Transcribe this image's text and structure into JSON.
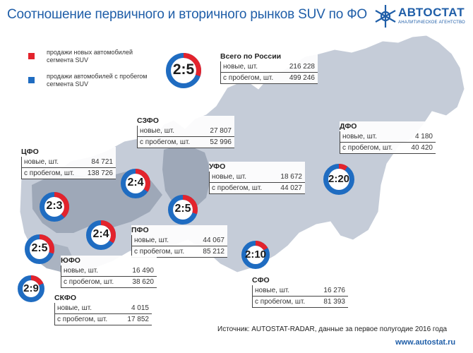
{
  "title": "Соотношение первичного и вторичного рынков SUV по ФО",
  "logo": {
    "name": "АВТОСТАТ",
    "subtitle": "АНАЛИТИЧЕСКОЕ АГЕНТСТВО"
  },
  "legend": [
    {
      "label": "продажи новых автомобилей сегмента SUV",
      "color": "#e3232c"
    },
    {
      "label": "продажи автомобилей с пробегом сегмента SUV",
      "color": "#1f6cc1"
    }
  ],
  "row_labels": {
    "new": "новые, шт.",
    "used": "с пробегом, шт."
  },
  "total_heading": "Всего по России",
  "source": "Источник: AUTOSTAT-RADAR, данные за первое полугодие 2016 года",
  "website": "www.autostat.ru",
  "chart_data": {
    "type": "pie",
    "title": "Соотношение первичного и вторичного рынков SUV по ФО",
    "series_names": [
      "продажи новых автомобилей сегмента SUV",
      "продажи автомобилей с пробегом сегмента SUV"
    ],
    "regions": [
      {
        "name": "Всего по России",
        "ratio": "2:5",
        "new": 216228,
        "new_label": "216 228",
        "used": 499246,
        "used_label": "499 246"
      },
      {
        "name": "СЗФО",
        "ratio": "2:4",
        "new": 27807,
        "new_label": "27 807",
        "used": 52996,
        "used_label": "52 996"
      },
      {
        "name": "ЦФО",
        "ratio": "2:3",
        "new": 84721,
        "new_label": "84 721",
        "used": 138726,
        "used_label": "138 726"
      },
      {
        "name": "УФО",
        "ratio": "2:5",
        "new": 18672,
        "new_label": "18 672",
        "used": 44027,
        "used_label": "44 027"
      },
      {
        "name": "ДФО",
        "ratio": "2:20",
        "new": 4180,
        "new_label": "4 180",
        "used": 40420,
        "used_label": "40 420"
      },
      {
        "name": "ПФО",
        "ratio": "2:4",
        "new": 44067,
        "new_label": "44 067",
        "used": 85212,
        "used_label": "85 212"
      },
      {
        "name": "ЮФО",
        "ratio": "2:5",
        "new": 16490,
        "new_label": "16 490",
        "used": 38620,
        "used_label": "38 620"
      },
      {
        "name": "СФО",
        "ratio": "2:10",
        "new": 16276,
        "new_label": "16 276",
        "used": 81393,
        "used_label": "81 393"
      },
      {
        "name": "СКФО",
        "ratio": "2:9",
        "new": 4015,
        "new_label": "4 015",
        "used": 17852,
        "used_label": "17 852"
      }
    ]
  }
}
